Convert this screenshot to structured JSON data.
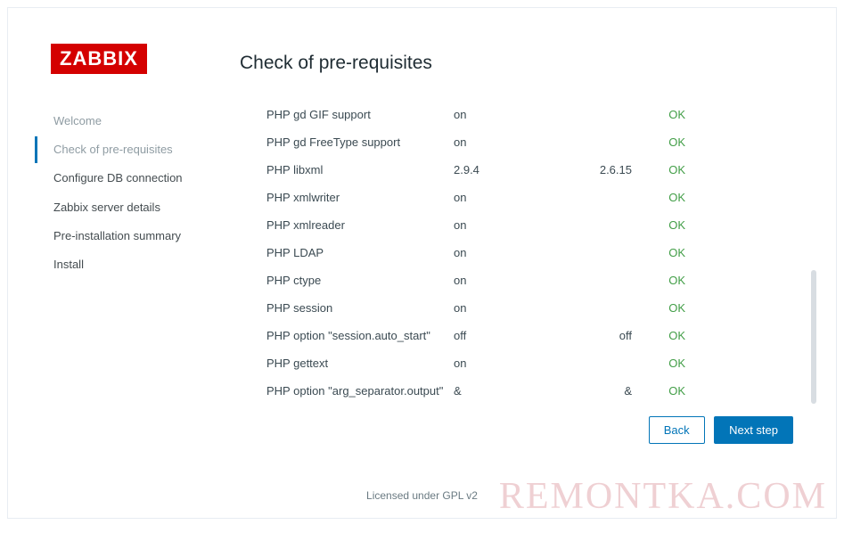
{
  "logo_text": "ZABBIX",
  "nav": [
    {
      "label": "Welcome",
      "state": "done"
    },
    {
      "label": "Check of pre-requisites",
      "state": "active"
    },
    {
      "label": "Configure DB connection",
      "state": "pending"
    },
    {
      "label": "Zabbix server details",
      "state": "pending"
    },
    {
      "label": "Pre-installation summary",
      "state": "pending"
    },
    {
      "label": "Install",
      "state": "pending"
    }
  ],
  "page_title": "Check of pre-requisites",
  "requirements": [
    {
      "name": "PHP gd GIF support",
      "value": "on",
      "required": "",
      "status": "OK"
    },
    {
      "name": "PHP gd FreeType support",
      "value": "on",
      "required": "",
      "status": "OK"
    },
    {
      "name": "PHP libxml",
      "value": "2.9.4",
      "required": "2.6.15",
      "status": "OK"
    },
    {
      "name": "PHP xmlwriter",
      "value": "on",
      "required": "",
      "status": "OK"
    },
    {
      "name": "PHP xmlreader",
      "value": "on",
      "required": "",
      "status": "OK"
    },
    {
      "name": "PHP LDAP",
      "value": "on",
      "required": "",
      "status": "OK"
    },
    {
      "name": "PHP ctype",
      "value": "on",
      "required": "",
      "status": "OK"
    },
    {
      "name": "PHP session",
      "value": "on",
      "required": "",
      "status": "OK"
    },
    {
      "name": "PHP option \"session.auto_start\"",
      "value": "off",
      "required": "off",
      "status": "OK"
    },
    {
      "name": "PHP gettext",
      "value": "on",
      "required": "",
      "status": "OK"
    },
    {
      "name": "PHP option \"arg_separator.output\"",
      "value": "&",
      "required": "&",
      "status": "OK"
    }
  ],
  "buttons": {
    "back": "Back",
    "next": "Next step"
  },
  "footer": "Licensed under GPL v2",
  "watermark": "REMONTKA.COM",
  "colors": {
    "brand_red": "#d40000",
    "accent_blue": "#0275b8",
    "ok_green": "#429e47",
    "frame_border": "#e8edf2",
    "muted_text": "#8f9ca3"
  }
}
